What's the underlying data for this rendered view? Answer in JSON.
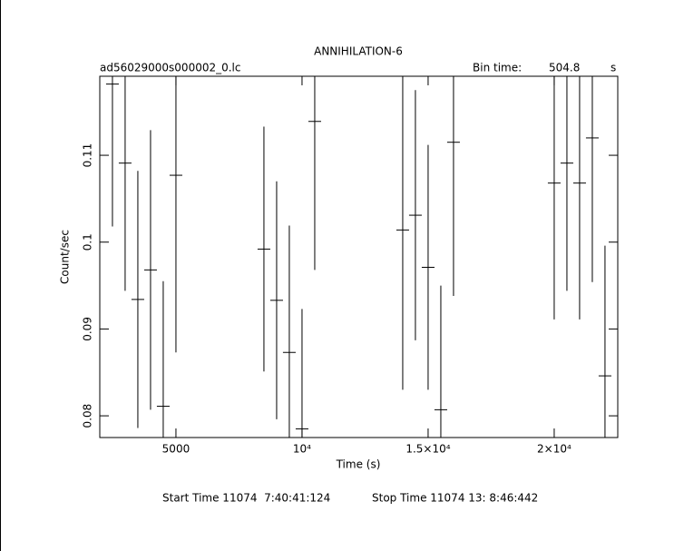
{
  "chart_data": {
    "type": "errorbar",
    "title": "ANNIHILATION-6",
    "file_name": "ad56029000s000002_0.lc",
    "bin_time_label": "Bin time:",
    "bin_time": 504.8,
    "bin_time_unit": "s",
    "x_label": "Time (s)",
    "y_label": "Count/sec",
    "start_time": "Start Time 11074  7:40:41:124",
    "stop_time": "Stop Time 11074 13: 8:46:442",
    "color": "#000000",
    "xlim": [
      1980,
      22520
    ],
    "ylim": [
      0.0775,
      0.1191
    ],
    "xticks": [
      5000,
      {
        "value": 10000,
        "label": "10⁴"
      },
      {
        "value": 15000,
        "label": "1.5×10⁴"
      },
      {
        "value": 20000,
        "label": "2×10⁴"
      }
    ],
    "yticks": [
      0.08,
      0.09,
      0.1,
      0.11
    ],
    "x": [
      2482,
      2985,
      3489,
      3993,
      4496,
      5000,
      8489,
      8993,
      9496,
      10000,
      10504,
      13993,
      14496,
      15000,
      15504,
      16007,
      20000,
      20504,
      21007,
      21511,
      22014
    ],
    "values": [
      0.1182,
      0.1091,
      0.0934,
      0.0968,
      0.0811,
      0.1077,
      0.0992,
      0.0933,
      0.0873,
      0.0785,
      0.1139,
      0.1014,
      0.1031,
      0.0971,
      0.0807,
      0.1115,
      0.1068,
      0.1091,
      0.1068,
      0.112,
      0.0846
    ],
    "yerr": [
      0.0164,
      0.0147,
      0.0148,
      0.0161,
      0.0144,
      0.0204,
      0.0141,
      0.0137,
      0.0146,
      0.0138,
      0.0171,
      0.0184,
      0.0144,
      0.0141,
      0.0143,
      0.0177,
      0.0157,
      0.0147,
      0.0157,
      0.0166,
      0.015
    ]
  }
}
